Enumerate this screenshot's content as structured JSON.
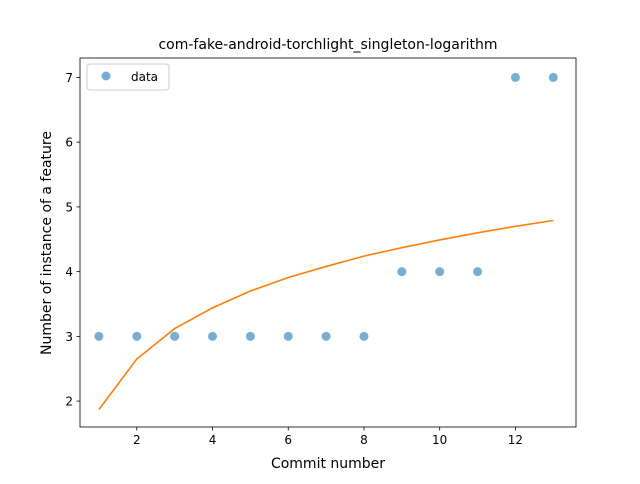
{
  "chart_data": {
    "type": "scatter",
    "title": "com-fake-android-torchlight_singleton-logarithm",
    "xlabel": "Commit number",
    "ylabel": "Number of instance of a feature",
    "xlim": [
      0.5,
      13.6
    ],
    "ylim": [
      1.6,
      7.3
    ],
    "xticks": [
      2,
      4,
      6,
      8,
      10,
      12
    ],
    "yticks": [
      2,
      3,
      4,
      5,
      6,
      7
    ],
    "legend_position": "top-left",
    "grid": false,
    "series": [
      {
        "name": "data",
        "kind": "scatter",
        "color": "#1f77b4",
        "x": [
          1,
          2,
          3,
          4,
          5,
          6,
          7,
          8,
          9,
          10,
          11,
          12,
          13
        ],
        "y": [
          3,
          3,
          3,
          3,
          3,
          3,
          3,
          3,
          4,
          4,
          4,
          7,
          7
        ]
      },
      {
        "kind": "line",
        "color": "#ff7f0e",
        "x": [
          1,
          2,
          3,
          4,
          5,
          6,
          7,
          8,
          9,
          10,
          11,
          12,
          13
        ],
        "y": [
          1.87,
          2.65,
          3.12,
          3.44,
          3.7,
          3.91,
          4.08,
          4.24,
          4.37,
          4.49,
          4.6,
          4.7,
          4.79
        ]
      }
    ]
  }
}
